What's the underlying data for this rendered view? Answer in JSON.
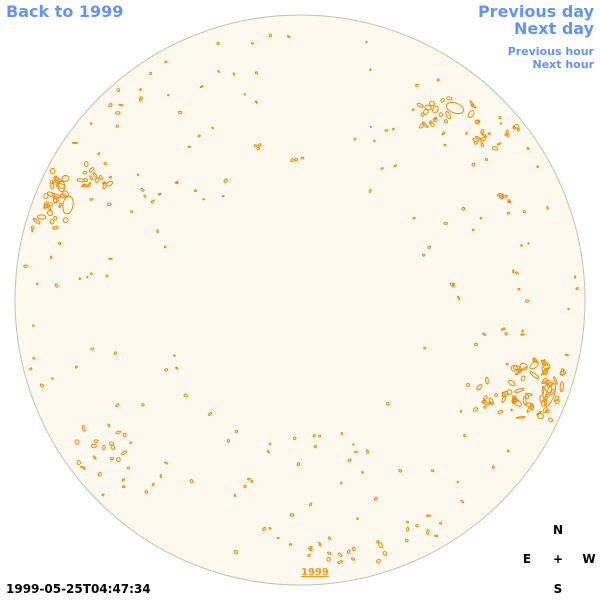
{
  "nav": {
    "back_label": "Back to 1999",
    "previous_day_label": "Previous day",
    "next_day_label": "Next day",
    "previous_hour_label": "Previous hour",
    "next_hour_label": "Next hour"
  },
  "timestamp": "1999-05-25T04:47:34",
  "year_link_label": "1999",
  "compass": {
    "north": "N",
    "east": "E",
    "center": "+",
    "west": "W",
    "south": "S"
  },
  "colors": {
    "disk_fill": "#fef9ee",
    "disk_border": "#c9bfae",
    "contour": "#f08a00",
    "link": "#6495ed",
    "year_link": "#f59a1a"
  },
  "icons": {
    "compass_center": "plus-icon"
  }
}
